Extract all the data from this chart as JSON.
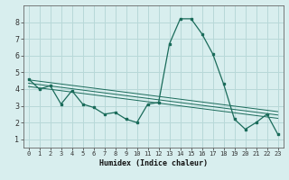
{
  "xlabel": "Humidex (Indice chaleur)",
  "ylabel": "",
  "bg_color": "#d8eeee",
  "grid_color": "#b8d8d8",
  "line_color": "#1a6b5a",
  "xlim": [
    -0.5,
    23.5
  ],
  "ylim": [
    0.5,
    9.0
  ],
  "xticks": [
    0,
    1,
    2,
    3,
    4,
    5,
    6,
    7,
    8,
    9,
    10,
    11,
    12,
    13,
    14,
    15,
    16,
    17,
    18,
    19,
    20,
    21,
    22,
    23
  ],
  "yticks": [
    1,
    2,
    3,
    4,
    5,
    6,
    7,
    8
  ],
  "main_x": [
    0,
    1,
    2,
    3,
    4,
    5,
    6,
    7,
    8,
    9,
    10,
    11,
    12,
    13,
    14,
    15,
    16,
    17,
    18,
    19,
    20,
    21,
    22,
    23
  ],
  "main_y": [
    4.6,
    4.0,
    4.2,
    3.1,
    3.9,
    3.1,
    2.9,
    2.5,
    2.6,
    2.2,
    2.0,
    3.1,
    3.2,
    6.7,
    8.2,
    8.2,
    7.3,
    6.1,
    4.3,
    2.2,
    1.6,
    2.0,
    2.5,
    1.3
  ],
  "trend_lines": [
    {
      "x": [
        0,
        23
      ],
      "y": [
        4.55,
        2.65
      ]
    },
    {
      "x": [
        0,
        23
      ],
      "y": [
        4.35,
        2.45
      ]
    },
    {
      "x": [
        0,
        23
      ],
      "y": [
        4.15,
        2.25
      ]
    }
  ],
  "xlabel_fontsize": 6.0,
  "tick_fontsize": 5.0
}
